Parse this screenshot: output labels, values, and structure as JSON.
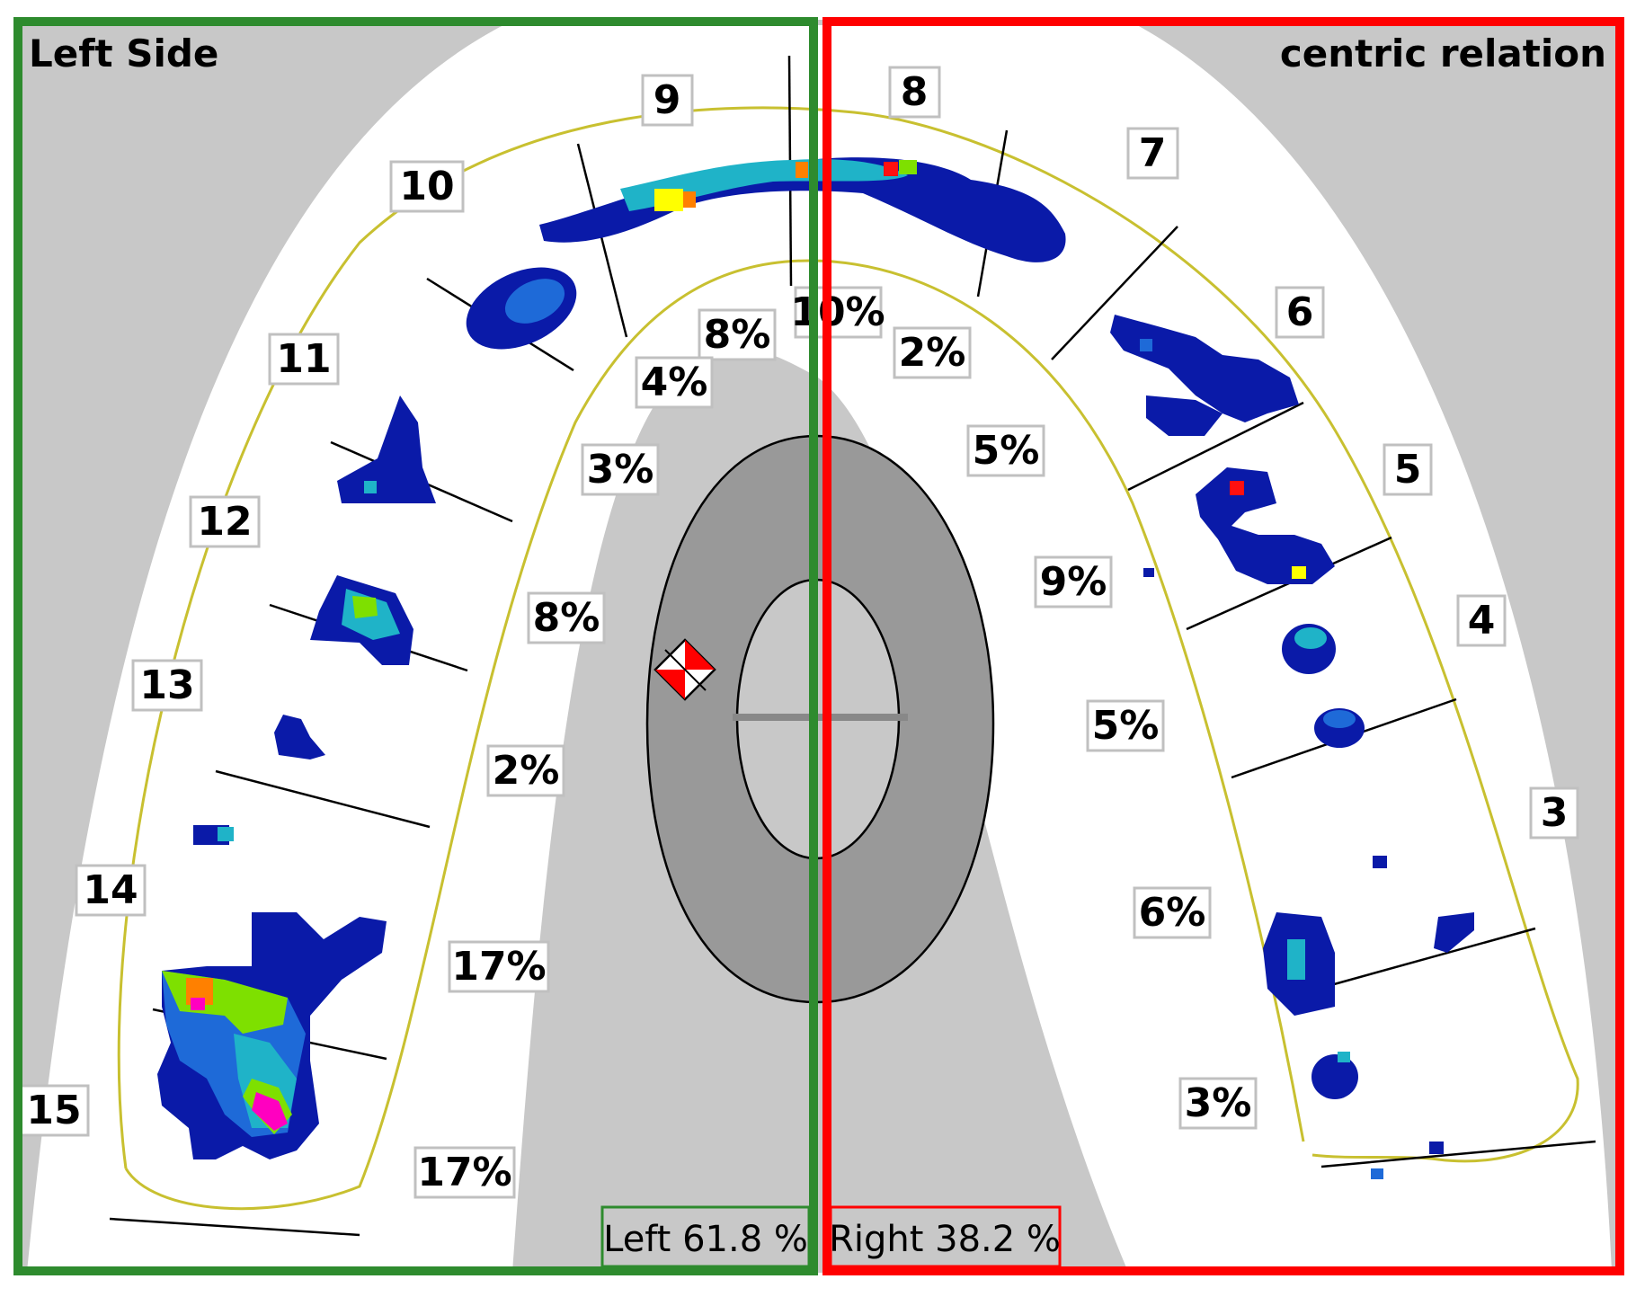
{
  "panels": {
    "left_title": "Left Side",
    "right_title": "centric relation",
    "left_total": "Left 61.8 %",
    "right_total": "Right 38.2 %",
    "left_color": "#2e8b2e",
    "right_color": "#ff0000"
  },
  "tooth_numbers": [
    "3",
    "4",
    "5",
    "6",
    "7",
    "8",
    "9",
    "10",
    "11",
    "12",
    "13",
    "14",
    "15"
  ],
  "force_percentages": {
    "t15": "17%",
    "t14": "17%",
    "t13": "2%",
    "t12": "8%",
    "t11": "3%",
    "t10": "4%",
    "t9": "8%",
    "t8": "10%",
    "t7": "2%",
    "t6": "5%",
    "t5": "9%",
    "t4": "5%",
    "t3": "6%",
    "t2": "3%"
  },
  "colors": {
    "background_gray": "#c8c8c8",
    "arch_white": "#ffffff",
    "arch_outline": "#c8c030",
    "target_ring": "#999999",
    "contact_blue": "#0a1aa8",
    "contact_mid": "#1e6ad8",
    "contact_cyan": "#1fb3c8",
    "contact_green": "#7ee000",
    "contact_yellow": "#ffff00",
    "contact_red": "#ff1010",
    "contact_pink": "#ff00c0"
  },
  "icons": {
    "center_of_force": "red-white-diamond-marker-icon"
  }
}
